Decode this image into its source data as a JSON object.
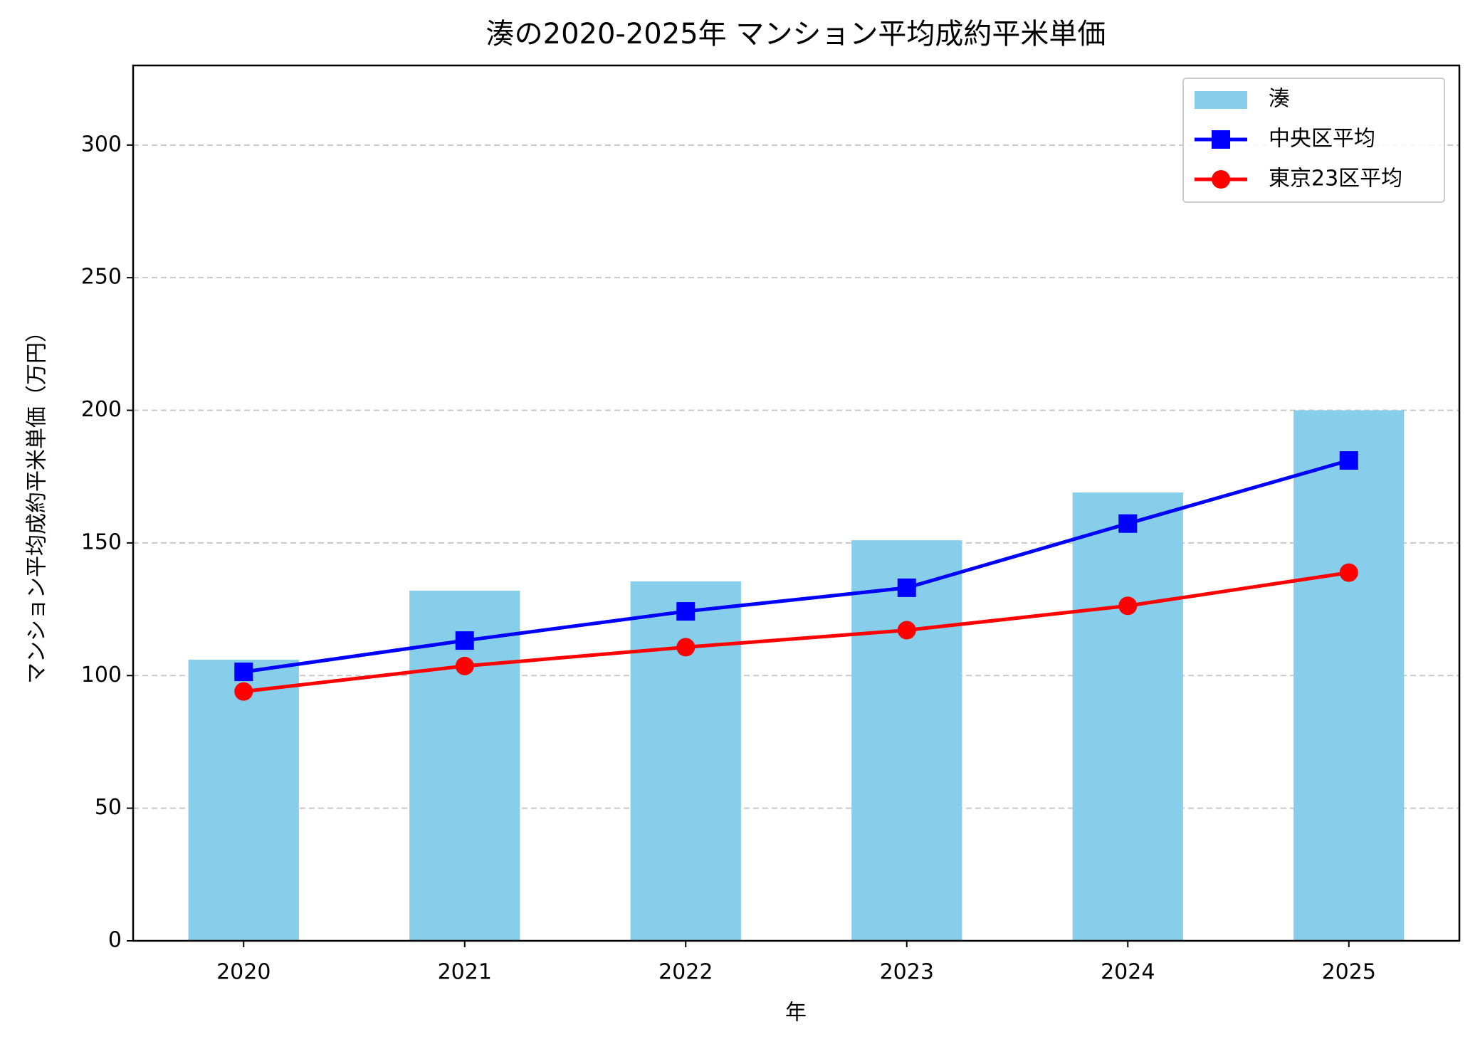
{
  "chart_data": {
    "type": "bar",
    "title": "湊の2020-2025年 マンション平均成約平米単価",
    "x_label": "年",
    "y_label": "マンション平均成約平米単価（万円）",
    "categories": [
      "2020",
      "2021",
      "2022",
      "2023",
      "2024",
      "2025"
    ],
    "series": [
      {
        "name": "湊",
        "type": "bar",
        "color": "#87ceeb",
        "values": [
          106,
          132,
          135.5,
          151,
          169,
          200
        ]
      },
      {
        "name": "中央区平均",
        "type": "line",
        "marker": "square",
        "color": "#0000ff",
        "values": [
          101.4,
          113.2,
          124.2,
          133.1,
          157.3,
          181.1
        ]
      },
      {
        "name": "東京23区平均",
        "type": "line",
        "marker": "circle",
        "color": "#ff0000",
        "values": [
          94,
          103.6,
          110.7,
          117.1,
          126.3,
          138.8
        ]
      }
    ],
    "ylim": [
      0,
      330
    ],
    "yticks": [
      0,
      50,
      100,
      150,
      200,
      250,
      300
    ],
    "grid": true,
    "legend": "upper-right"
  }
}
